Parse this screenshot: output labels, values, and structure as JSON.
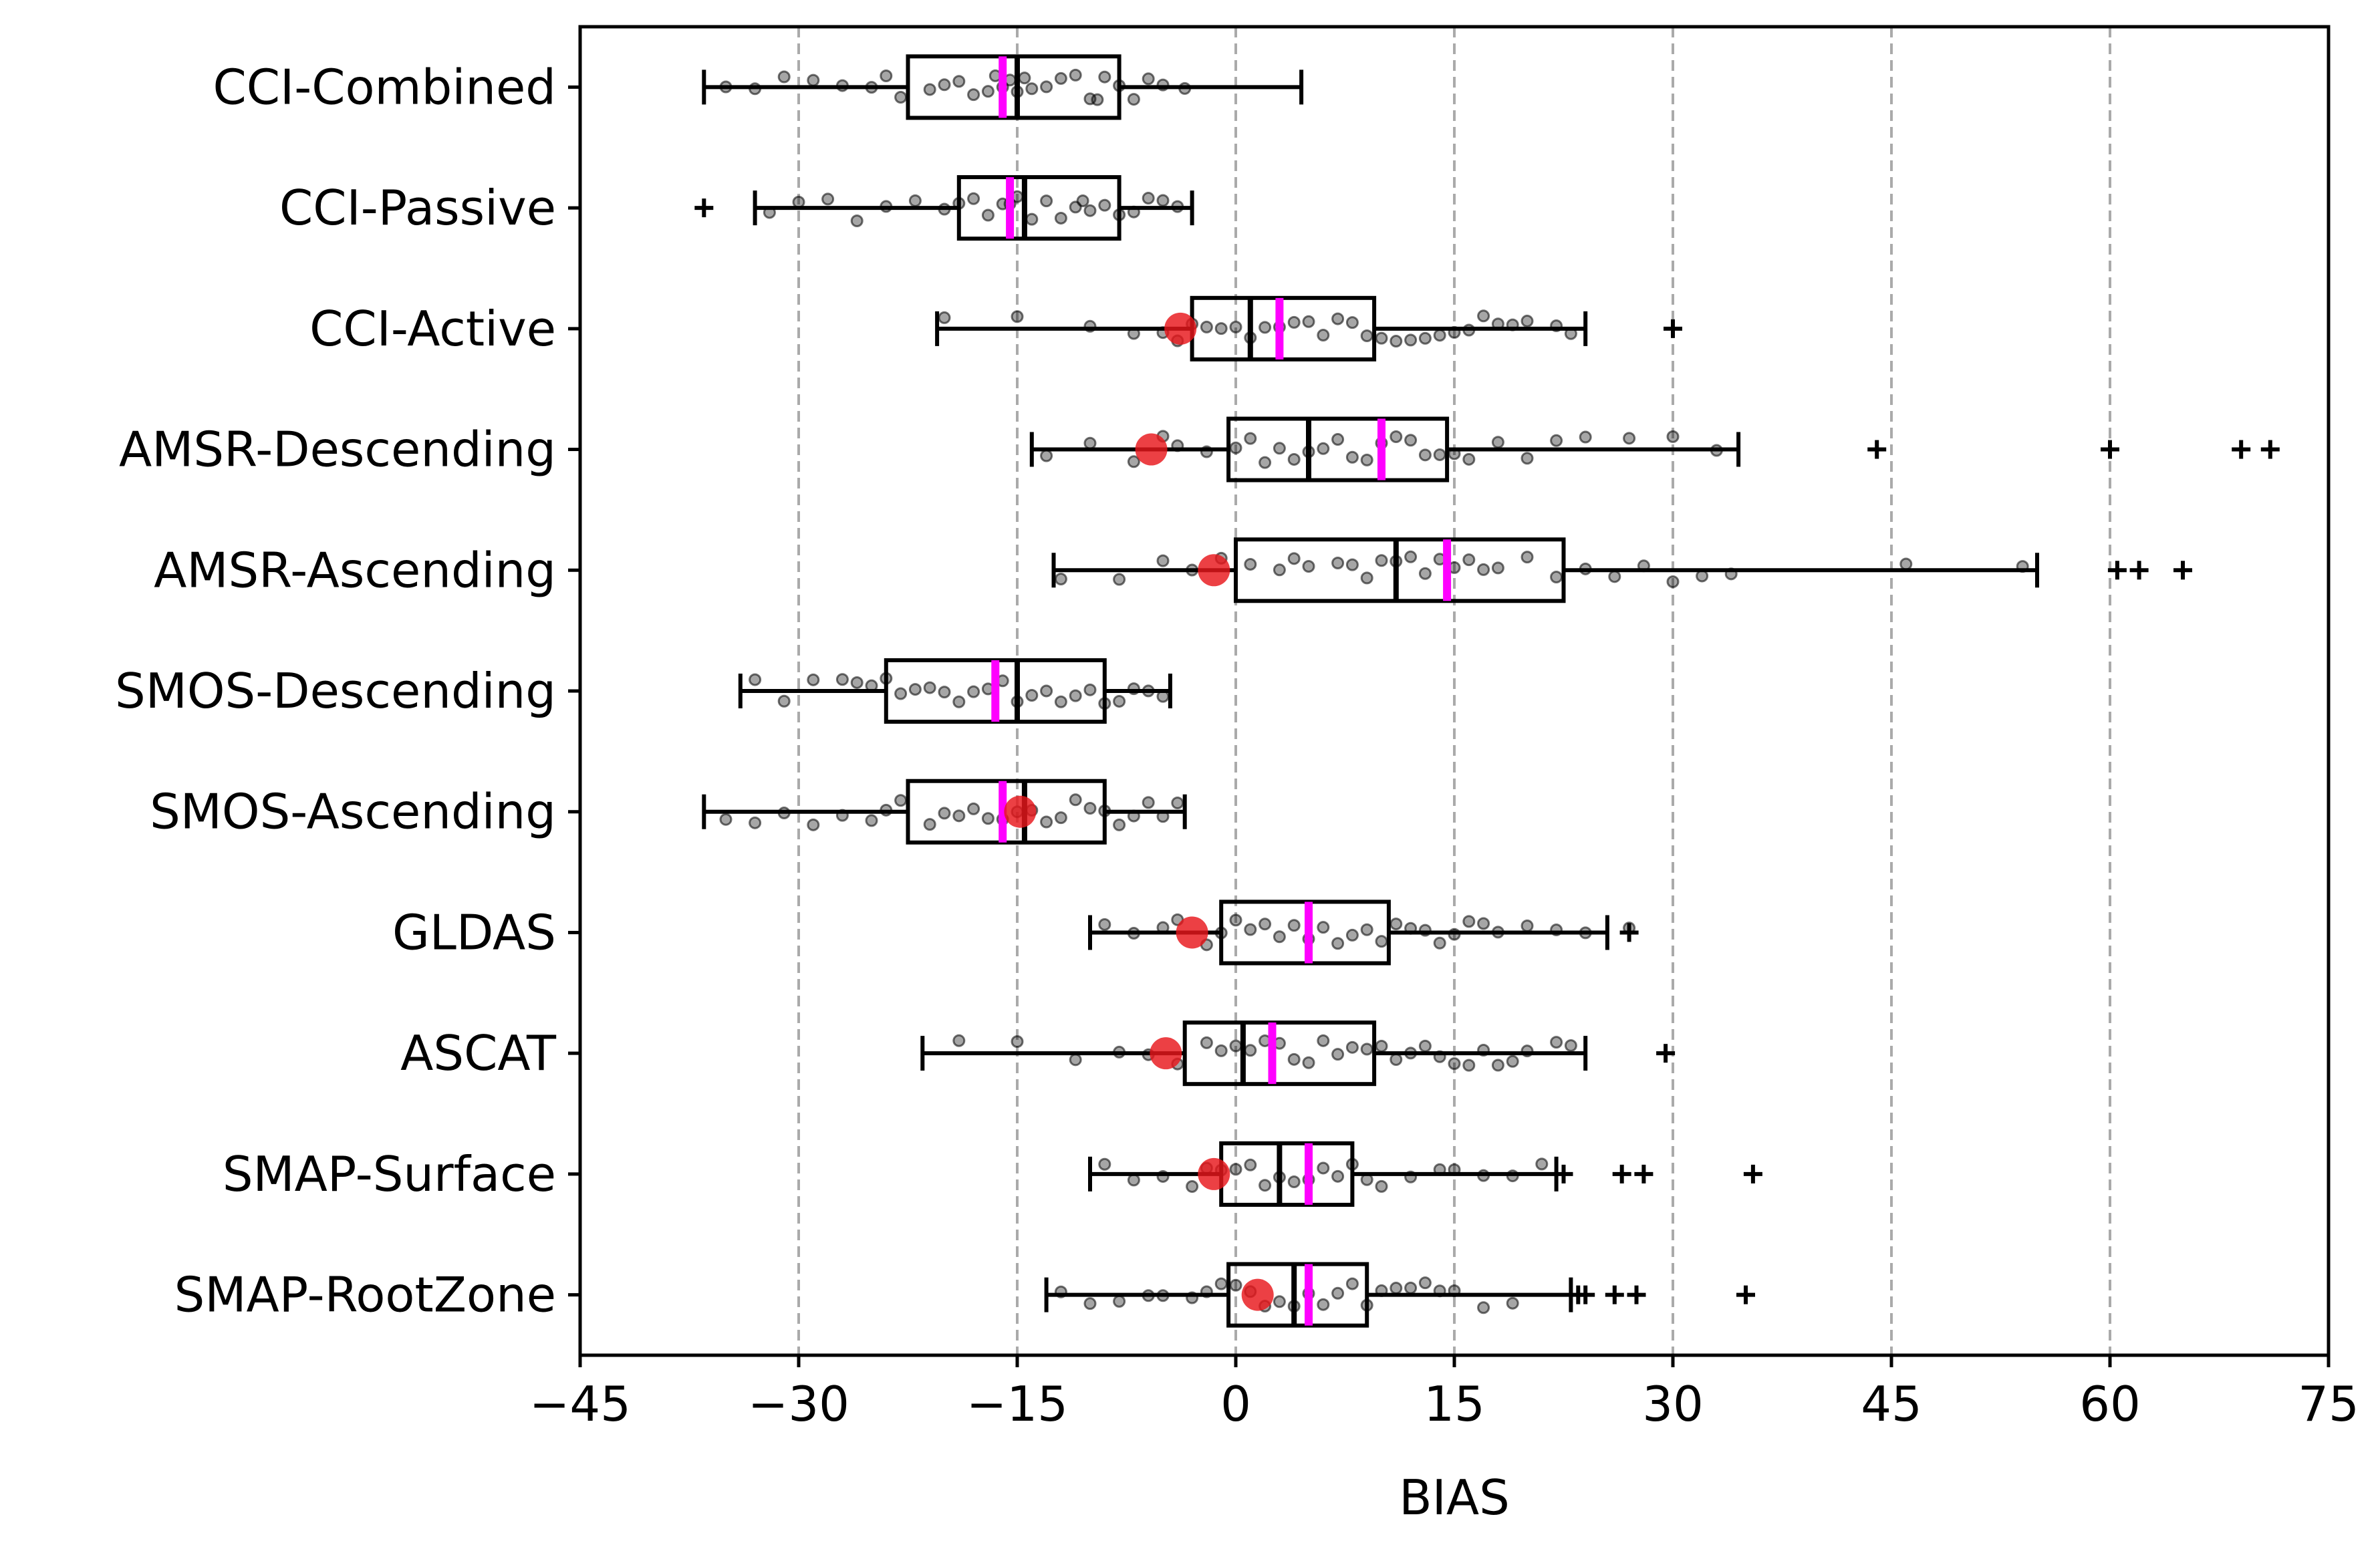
{
  "chart_data": {
    "type": "box",
    "orientation": "horizontal",
    "xlabel": "BIAS",
    "xlim": [
      -45,
      75
    ],
    "xticks": [
      -45,
      -30,
      -15,
      0,
      15,
      30,
      45,
      60,
      75
    ],
    "xtick_labels": [
      "−45",
      "−30",
      "−15",
      "0",
      "15",
      "30",
      "45",
      "60",
      "75"
    ],
    "grid": {
      "x": true,
      "style": "dashed",
      "y": false
    },
    "colors": {
      "box": "#000000",
      "mean_line": "#ff00ff",
      "point": "#000000",
      "highlight": "#e8161b",
      "grid": "#aaaaaa"
    },
    "categories": [
      "CCI-Combined",
      "CCI-Passive",
      "CCI-Active",
      "AMSR-Descending",
      "AMSR-Ascending",
      "SMOS-Descending",
      "SMOS-Ascending",
      "GLDAS",
      "ASCAT",
      "SMAP-Surface",
      "SMAP-RootZone"
    ],
    "boxes": [
      {
        "category": "CCI-Combined",
        "whisker_low": -36.5,
        "q1": -22.5,
        "median": -15.0,
        "q3": -8.0,
        "whisker_high": 4.5,
        "mean": -16.0,
        "highlight": null,
        "outliers": [],
        "points": [
          -35,
          -33,
          -31,
          -29,
          -27,
          -25,
          -24,
          -23,
          -21,
          -20,
          -19,
          -18,
          -17,
          -16.5,
          -16,
          -15.5,
          -15,
          -14.5,
          -14,
          -13,
          -12,
          -11,
          -10,
          -9.5,
          -9,
          -8,
          -7,
          -6,
          -5,
          -3.5
        ]
      },
      {
        "category": "CCI-Passive",
        "whisker_low": -33.0,
        "q1": -19.0,
        "median": -14.5,
        "q3": -8.0,
        "whisker_high": -3.0,
        "mean": -15.5,
        "highlight": null,
        "outliers": [
          -36.5
        ],
        "points": [
          -32,
          -30,
          -28,
          -26,
          -24,
          -22,
          -20,
          -19,
          -18,
          -17,
          -16,
          -15.5,
          -15,
          -14,
          -13,
          -12,
          -11,
          -10.5,
          -10,
          -9,
          -8,
          -7,
          -6,
          -5,
          -4
        ]
      },
      {
        "category": "CCI-Active",
        "whisker_low": -20.5,
        "q1": -3.0,
        "median": 1.0,
        "q3": 9.5,
        "whisker_high": 24.0,
        "mean": 3.0,
        "highlight": -3.8,
        "outliers": [
          30.0
        ],
        "points": [
          -20,
          -15,
          -10,
          -7,
          -5,
          -4,
          -3,
          -2,
          -1,
          0,
          1,
          2,
          3,
          4,
          5,
          6,
          7,
          8,
          9,
          10,
          11,
          12,
          13,
          14,
          15,
          16,
          17,
          18,
          19,
          20,
          22,
          23
        ]
      },
      {
        "category": "AMSR-Descending",
        "whisker_low": -14.0,
        "q1": -0.5,
        "median": 5.0,
        "q3": 14.5,
        "whisker_high": 34.5,
        "mean": 10.0,
        "highlight": -5.8,
        "outliers": [
          44.0,
          60.0,
          69.0,
          71.0
        ],
        "points": [
          -13,
          -10,
          -7,
          -5,
          -4,
          -2,
          0,
          1,
          2,
          3,
          4,
          5,
          6,
          7,
          8,
          9,
          10,
          11,
          12,
          13,
          14,
          15,
          16,
          18,
          20,
          22,
          24,
          27,
          30,
          33
        ]
      },
      {
        "category": "AMSR-Ascending",
        "whisker_low": -12.5,
        "q1": 0.0,
        "median": 11.0,
        "q3": 22.5,
        "whisker_high": 55.0,
        "mean": 14.5,
        "highlight": -1.5,
        "outliers": [
          60.5,
          62.0,
          65.0
        ],
        "points": [
          -12,
          -8,
          -5,
          -3,
          -1,
          1,
          3,
          4,
          5,
          7,
          8,
          9,
          10,
          11,
          12,
          13,
          14,
          15,
          16,
          17,
          18,
          20,
          22,
          24,
          26,
          28,
          30,
          32,
          34,
          46,
          54
        ]
      },
      {
        "category": "SMOS-Descending",
        "whisker_low": -34.0,
        "q1": -24.0,
        "median": -15.0,
        "q3": -9.0,
        "whisker_high": -4.5,
        "mean": -16.5,
        "highlight": null,
        "outliers": [],
        "points": [
          -33,
          -31,
          -29,
          -27,
          -26,
          -25,
          -24,
          -23,
          -22,
          -21,
          -20,
          -19,
          -18,
          -17,
          -16,
          -15,
          -14,
          -13,
          -12,
          -11,
          -10,
          -9,
          -8,
          -7,
          -6,
          -5
        ]
      },
      {
        "category": "SMOS-Ascending",
        "whisker_low": -36.5,
        "q1": -22.5,
        "median": -14.5,
        "q3": -9.0,
        "whisker_high": -3.5,
        "mean": -16.0,
        "highlight": -14.8,
        "outliers": [],
        "points": [
          -35,
          -33,
          -31,
          -29,
          -27,
          -25,
          -24,
          -23,
          -21,
          -20,
          -19,
          -18,
          -17,
          -16,
          -15,
          -14,
          -13,
          -12,
          -11,
          -10,
          -9,
          -8,
          -7,
          -6,
          -5,
          -4
        ]
      },
      {
        "category": "GLDAS",
        "whisker_low": -10.0,
        "q1": -1.0,
        "median": 5.0,
        "q3": 10.5,
        "whisker_high": 25.5,
        "mean": 5.0,
        "highlight": -3.0,
        "outliers": [
          27.0
        ],
        "points": [
          -9,
          -7,
          -5,
          -4,
          -2,
          -1,
          0,
          1,
          2,
          3,
          4,
          5,
          6,
          7,
          8,
          9,
          10,
          11,
          12,
          13,
          14,
          15,
          16,
          17,
          18,
          20,
          22,
          24,
          27
        ]
      },
      {
        "category": "ASCAT",
        "whisker_low": -21.5,
        "q1": -3.5,
        "median": 0.5,
        "q3": 9.5,
        "whisker_high": 24.0,
        "mean": 2.5,
        "highlight": -4.8,
        "outliers": [
          29.5
        ],
        "points": [
          -19,
          -15,
          -11,
          -8,
          -6,
          -4,
          -2,
          -1,
          0,
          1,
          2,
          3,
          4,
          5,
          6,
          7,
          8,
          9,
          10,
          11,
          12,
          13,
          14,
          15,
          16,
          17,
          18,
          19,
          20,
          22,
          23
        ]
      },
      {
        "category": "SMAP-Surface",
        "whisker_low": -10.0,
        "q1": -1.0,
        "median": 3.0,
        "q3": 8.0,
        "whisker_high": 22.0,
        "mean": 5.0,
        "highlight": -1.5,
        "outliers": [
          22.5,
          26.5,
          28.0,
          35.5
        ],
        "points": [
          -9,
          -7,
          -5,
          -3,
          -2,
          -1,
          0,
          1,
          2,
          3,
          4,
          5,
          6,
          7,
          8,
          9,
          10,
          12,
          14,
          15,
          17,
          19,
          21
        ]
      },
      {
        "category": "SMAP-RootZone",
        "whisker_low": -13.0,
        "q1": -0.5,
        "median": 4.0,
        "q3": 9.0,
        "whisker_high": 23.0,
        "mean": 5.0,
        "highlight": 1.5,
        "outliers": [
          23.5,
          24.0,
          26.0,
          27.5,
          35.0
        ],
        "points": [
          -12,
          -10,
          -8,
          -6,
          -5,
          -3,
          -2,
          -1,
          0,
          1,
          2,
          3,
          4,
          5,
          6,
          7,
          8,
          9,
          10,
          11,
          12,
          13,
          14,
          15,
          17,
          19
        ]
      }
    ]
  }
}
